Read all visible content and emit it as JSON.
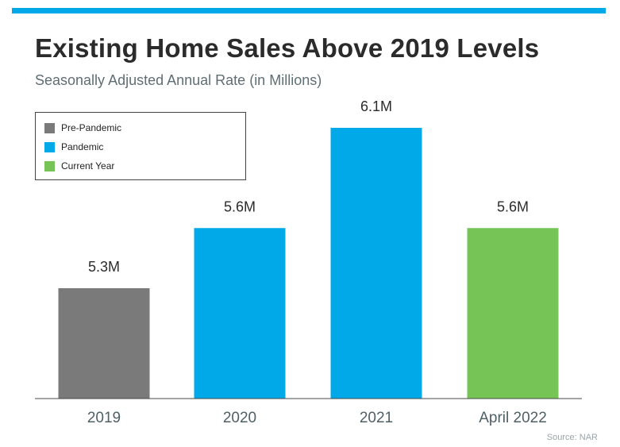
{
  "header": {
    "title": "Existing Home Sales Above 2019 Levels",
    "subtitle": "Seasonally Adjusted Annual Rate (in Millions)"
  },
  "legend": {
    "items": [
      {
        "label": "Pre-Pandemic",
        "color": "#7a7a7a"
      },
      {
        "label": "Pandemic",
        "color": "#02a9e8"
      },
      {
        "label": "Current Year",
        "color": "#75c455"
      }
    ]
  },
  "source": "Source: NAR",
  "chart_data": {
    "type": "bar",
    "title": "Existing Home Sales Above 2019 Levels",
    "subtitle": "Seasonally Adjusted Annual Rate (in Millions)",
    "xlabel": "",
    "ylabel": "",
    "categories": [
      "2019",
      "2020",
      "2021",
      "April 2022"
    ],
    "values": [
      5.3,
      5.6,
      6.1,
      5.6
    ],
    "data_labels": [
      "5.3M",
      "5.6M",
      "6.1M",
      "5.6M"
    ],
    "bar_colors": [
      "#7a7a7a",
      "#02a9e8",
      "#02a9e8",
      "#75c455"
    ],
    "bar_groups": [
      "Pre-Pandemic",
      "Pandemic",
      "Pandemic",
      "Current Year"
    ],
    "grid": false,
    "legend_position": "top-left"
  }
}
